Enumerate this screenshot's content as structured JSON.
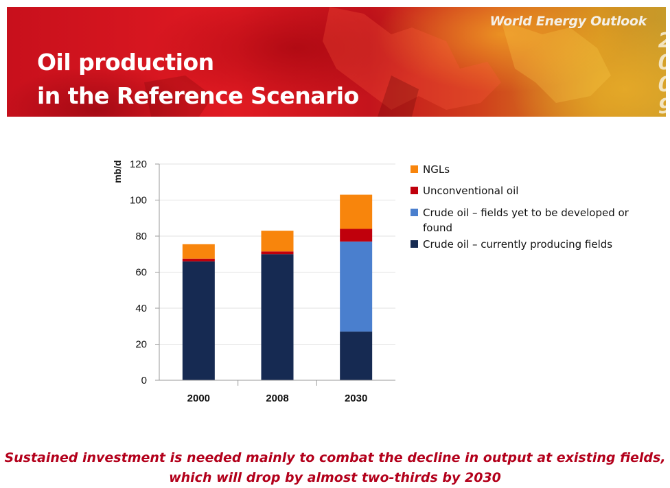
{
  "header": {
    "title_line1": "Oil production",
    "title_line2": "in the Reference Scenario",
    "brand": "World Energy Outlook",
    "year_digits": [
      "2",
      "0",
      "0",
      "9"
    ],
    "banner_colors": [
      "#c8101c",
      "#e01a22",
      "#d49020"
    ]
  },
  "chart_data": {
    "type": "bar",
    "stacked": true,
    "categories": [
      "2000",
      "2008",
      "2030"
    ],
    "series": [
      {
        "name": "Crude oil – currently producing fields",
        "color": "#162a52",
        "values": [
          66,
          70,
          27
        ]
      },
      {
        "name": "Crude oil – fields yet to be developed or found",
        "color": "#4a7fce",
        "values": [
          0,
          0,
          50
        ]
      },
      {
        "name": "Unconventional oil",
        "color": "#c0000c",
        "values": [
          1.5,
          1.5,
          7
        ]
      },
      {
        "name": "NGLs",
        "color": "#f8850c",
        "values": [
          8,
          11.5,
          19
        ]
      }
    ],
    "ylabel": "mb/d",
    "xlabel": "",
    "ylim": [
      0,
      120
    ],
    "yticks": [
      0,
      20,
      40,
      60,
      80,
      100,
      120
    ],
    "grid": true,
    "legend_position": "right"
  },
  "legend": {
    "items": [
      {
        "label": "NGLs",
        "color": "#f8850c"
      },
      {
        "label": "Unconventional oil",
        "color": "#c0000c"
      },
      {
        "label": "Crude oil – fields yet to be developed or found",
        "color": "#4a7fce"
      },
      {
        "label": "Crude oil – currently producing fields",
        "color": "#162a52"
      }
    ]
  },
  "caption": {
    "line1": "Sustained investment is needed mainly to combat the decline in output at existing fields,",
    "line2": "which will drop by almost two-thirds by 2030",
    "color": "#b3001b"
  }
}
